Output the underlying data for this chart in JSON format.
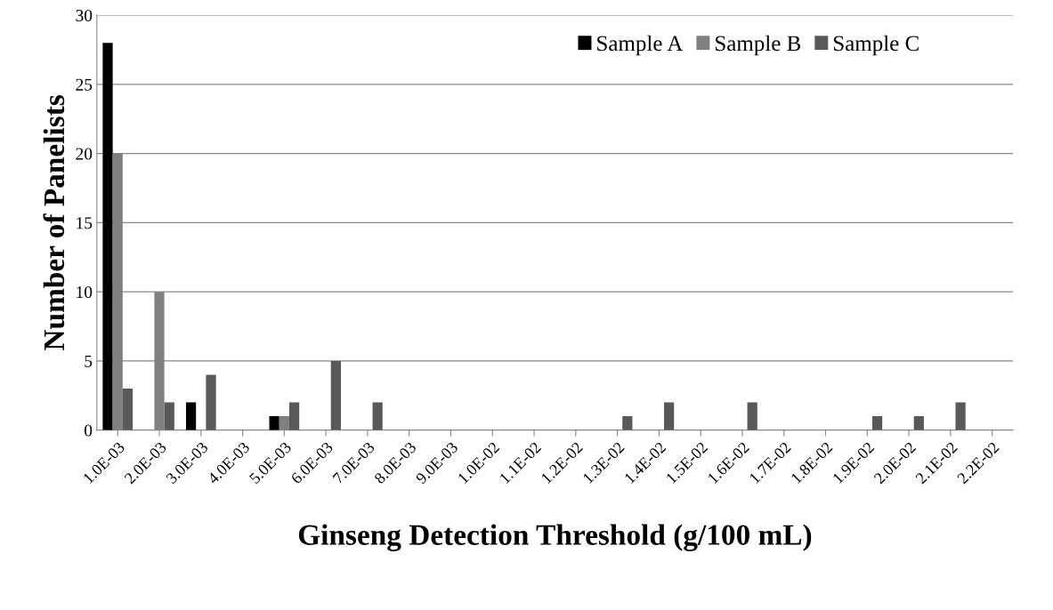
{
  "chart_data": {
    "type": "bar",
    "xlabel": "Ginseng Detection Threshold (g/100 mL)",
    "ylabel": "Number of Panelists",
    "categories": [
      "1.0E-03",
      "2.0E-03",
      "3.0E-03",
      "4.0E-03",
      "5.0E-03",
      "6.0E-03",
      "7.0E-03",
      "8.0E-03",
      "9.0E-03",
      "1.0E-02",
      "1.1E-02",
      "1.2E-02",
      "1.3E-02",
      "1.4E-02",
      "1.5E-02",
      "1.6E-02",
      "1.7E-02",
      "1.8E-02",
      "1.9E-02",
      "2.0E-02",
      "2.1E-02",
      "2.2E-02"
    ],
    "series": [
      {
        "name": "Sample A",
        "color": "#000000",
        "values": [
          28,
          null,
          2,
          null,
          1,
          null,
          null,
          null,
          null,
          null,
          null,
          null,
          null,
          null,
          null,
          null,
          null,
          null,
          null,
          null,
          null,
          null
        ]
      },
      {
        "name": "Sample B",
        "color": "#808080",
        "values": [
          20,
          10,
          null,
          null,
          1,
          null,
          null,
          null,
          null,
          null,
          null,
          null,
          null,
          null,
          null,
          null,
          null,
          null,
          null,
          null,
          null,
          null
        ]
      },
      {
        "name": "Sample C",
        "color": "#595959",
        "values": [
          3,
          2,
          4,
          null,
          2,
          5,
          2,
          null,
          null,
          null,
          null,
          null,
          1,
          2,
          null,
          2,
          null,
          null,
          1,
          1,
          2,
          null
        ]
      }
    ],
    "ylim": [
      0,
      30
    ],
    "yticks": [
      0,
      5,
      10,
      15,
      20,
      25,
      30
    ],
    "grid": "y",
    "legend": "top right"
  }
}
